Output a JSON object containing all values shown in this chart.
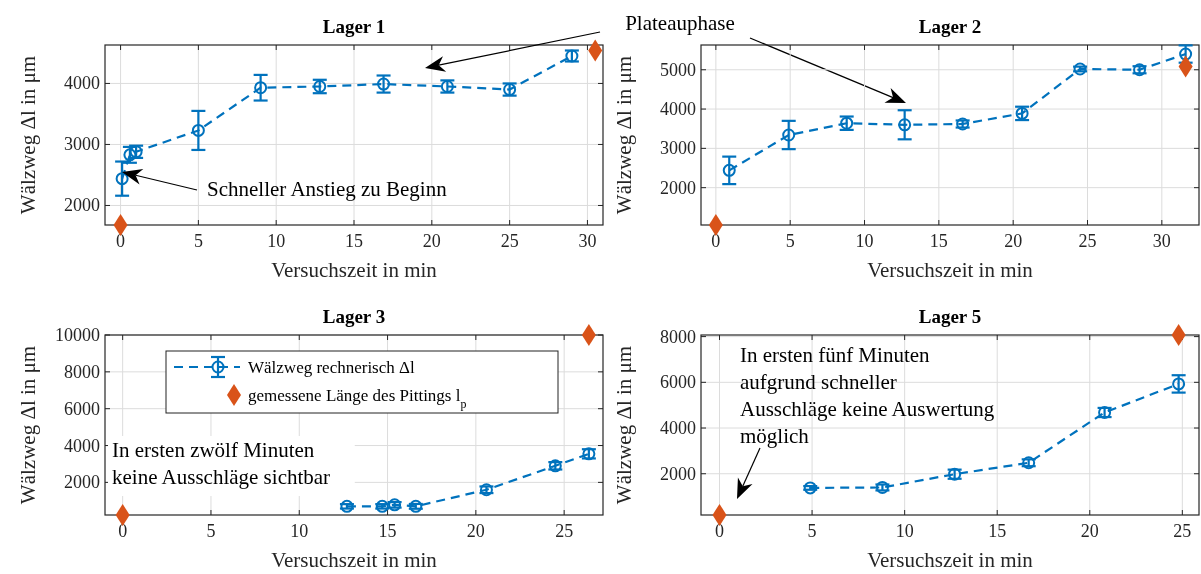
{
  "chart_data": [
    {
      "type": "line",
      "title": "Lager 1",
      "xlabel": "Versuchszeit in min",
      "ylabel": "Wälzweg Δl in μm",
      "xlim": [
        -1,
        31
      ],
      "xticks": [
        0,
        5,
        10,
        15,
        20,
        25,
        30
      ],
      "ylim": [
        1680,
        4630
      ],
      "yticks": [
        2000,
        3000,
        4000
      ],
      "grid": true,
      "legend": false,
      "annotations": [
        "Schneller Anstieg zu Beginn",
        "Plateauphase"
      ],
      "series": [
        {
          "color": "#0072bd",
          "marker": "circle",
          "line_style": "dashed",
          "x": [
            0.1,
            0.6,
            1.0,
            5,
            9,
            12.8,
            16.9,
            21,
            25,
            29
          ],
          "values": [
            2440,
            2830,
            2880,
            3230,
            3930,
            3950,
            3990,
            3950,
            3900,
            4450
          ],
          "errors": [
            280,
            130,
            100,
            320,
            210,
            110,
            140,
            100,
            100,
            90
          ]
        },
        {
          "type": "scatter",
          "color": "#d95319",
          "marker": "diamond",
          "x": [
            0,
            30.5
          ],
          "values": [
            1680,
            4540
          ]
        }
      ]
    },
    {
      "type": "line",
      "title": "Lager 2",
      "xlabel": "Versuchszeit in min",
      "ylabel": "Wälzweg Δl in μm",
      "xlim": [
        -1,
        32.5
      ],
      "xticks": [
        0,
        5,
        10,
        15,
        20,
        25,
        30
      ],
      "ylim": [
        1050,
        5630
      ],
      "yticks": [
        2000,
        3000,
        4000,
        5000
      ],
      "grid": true,
      "legend": false,
      "series": [
        {
          "color": "#0072bd",
          "marker": "circle",
          "line_style": "dashed",
          "x": [
            0.9,
            4.9,
            8.8,
            12.7,
            16.6,
            20.6,
            24.5,
            28.5,
            31.6
          ],
          "values": [
            2440,
            3340,
            3640,
            3600,
            3620,
            3890,
            5020,
            5000,
            5400
          ],
          "errors": [
            350,
            360,
            170,
            370,
            90,
            170,
            60,
            90,
            220
          ]
        },
        {
          "type": "scatter",
          "color": "#d95319",
          "marker": "diamond",
          "x": [
            0,
            31.6
          ],
          "values": [
            1050,
            5080
          ]
        }
      ]
    },
    {
      "type": "line",
      "title": "Lager 3",
      "xlabel": "Versuchszeit in min",
      "ylabel": "Wälzweg Δl in μm",
      "xlim": [
        -1,
        27.2
      ],
      "xticks": [
        0,
        5,
        10,
        15,
        20,
        25
      ],
      "ylim": [
        230,
        10000
      ],
      "yticks": [
        2000,
        4000,
        6000,
        8000,
        10000
      ],
      "grid": true,
      "legend": "top",
      "annotations": [
        "In ersten zwölf Minuten\nkeine Ausschläge sichtbar"
      ],
      "series": [
        {
          "name": "Wälzweg rechnerisch Δl",
          "color": "#0072bd",
          "marker": "circle",
          "line_style": "dashed",
          "x": [
            12.7,
            14.7,
            15.4,
            16.6,
            20.6,
            24.5,
            26.4
          ],
          "values": [
            700,
            700,
            780,
            700,
            1600,
            2900,
            3550
          ],
          "errors": [
            120,
            120,
            150,
            130,
            180,
            200,
            250
          ]
        },
        {
          "type": "scatter",
          "name": "gemessene Länge des Pittings l$_{p}$",
          "color": "#d95319",
          "marker": "diamond",
          "x": [
            0,
            26.4
          ],
          "values": [
            230,
            10000
          ]
        }
      ]
    },
    {
      "type": "line",
      "title": "Lager 5",
      "xlabel": "Versuchszeit in min",
      "ylabel": "Wälzweg Δl in μm",
      "xlim": [
        -1,
        25.9
      ],
      "xticks": [
        0,
        5,
        10,
        15,
        20,
        25
      ],
      "ylim": [
        195,
        8070
      ],
      "yticks": [
        2000,
        4000,
        6000,
        8000
      ],
      "grid": true,
      "legend": false,
      "annotations": [
        "In ersten fünf Minuten\naufgrund schneller\nAusschläge keine Auswertung\nmöglich"
      ],
      "series": [
        {
          "color": "#0072bd",
          "marker": "circle",
          "line_style": "dashed",
          "x": [
            4.9,
            8.8,
            12.7,
            16.7,
            20.8,
            24.8
          ],
          "values": [
            1380,
            1400,
            1980,
            2480,
            4680,
            5930
          ],
          "errors": [
            80,
            130,
            200,
            150,
            200,
            380
          ]
        },
        {
          "type": "scatter",
          "color": "#d95319",
          "marker": "diamond",
          "x": [
            0,
            24.8
          ],
          "values": [
            200,
            8070
          ]
        }
      ]
    }
  ]
}
